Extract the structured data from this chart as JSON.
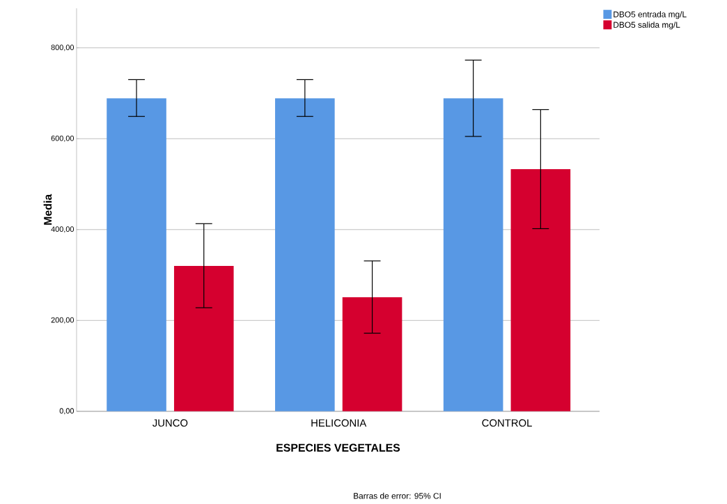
{
  "chart_data": {
    "type": "bar",
    "xlabel": "ESPECIES VEGETALES",
    "ylabel": "Media",
    "categories": [
      "JUNCO",
      "HELICONIA",
      "CONTROL"
    ],
    "series": [
      {
        "name": "DBO5 entrada mg/L",
        "color": "#5898e4",
        "values": [
          689,
          689,
          689
        ],
        "errors": [
          [
            649,
            730
          ],
          [
            649,
            730
          ],
          [
            605,
            773
          ]
        ]
      },
      {
        "name": "DBO5 salida mg/L",
        "color": "#d5002f",
        "values": [
          320,
          251,
          533
        ],
        "errors": [
          [
            228,
            413
          ],
          [
            172,
            331
          ],
          [
            402,
            664
          ]
        ]
      }
    ],
    "ylim": [
      0,
      887
    ],
    "yticks": [
      {
        "value": 0,
        "label": "0,00"
      },
      {
        "value": 200,
        "label": "200,00"
      },
      {
        "value": 400,
        "label": "400,00"
      },
      {
        "value": 600,
        "label": "600,00"
      },
      {
        "value": 800,
        "label": "800,00"
      }
    ],
    "grid": "y",
    "legend": "top right",
    "annotations": [
      "Barras de error: 95% CI"
    ]
  }
}
